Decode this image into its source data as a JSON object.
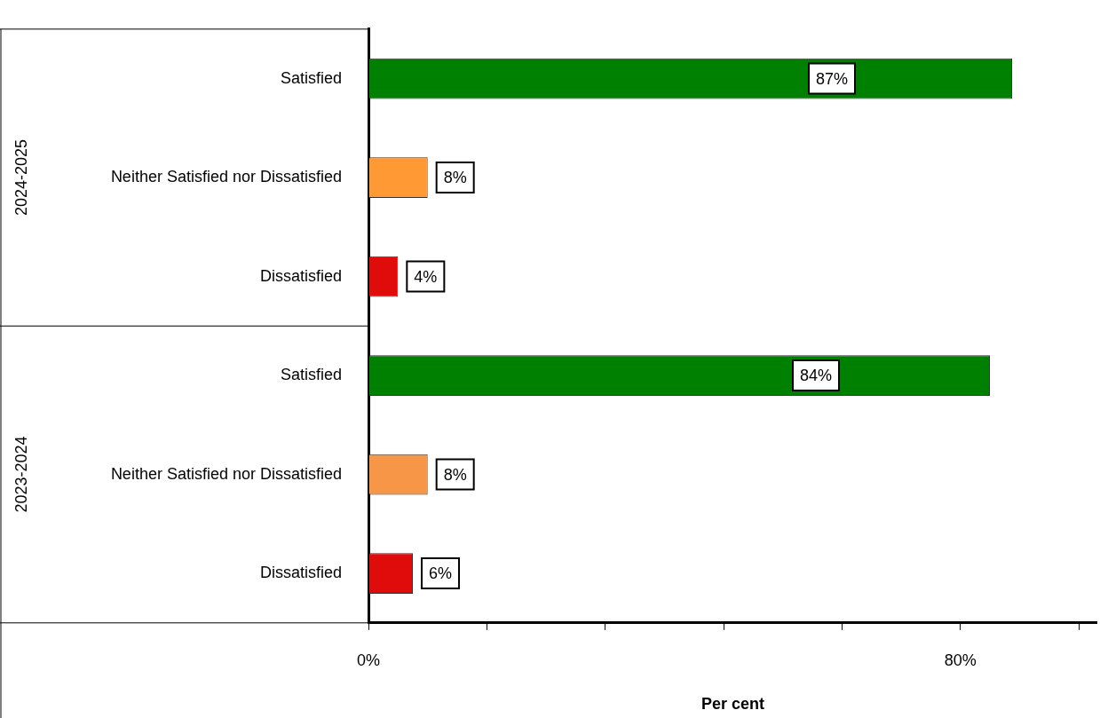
{
  "chart_data": {
    "type": "bar",
    "orientation": "horizontal",
    "xlabel": "Per cent",
    "categories": [
      "Satisfied",
      "Neither Satisfied nor Dissatisfied",
      "Dissatisfied",
      "Satisfied",
      "Neither Satisfied nor Dissatisfied",
      "Dissatisfied"
    ],
    "values": [
      87,
      8,
      4,
      84,
      8,
      6
    ],
    "colors": [
      "#008000",
      "#ff9933",
      "#e00b0b",
      "#008000",
      "#f79646",
      "#e00b0b"
    ],
    "value_labels": [
      "87%",
      "8%",
      "4%",
      "84%",
      "8%",
      "6%"
    ],
    "annotations": [
      "2024-2025",
      "2023-2024"
    ],
    "xlim": [
      0,
      98.5
    ],
    "xticks": [
      {
        "value": 0,
        "label": "0%"
      },
      {
        "value": 16,
        "label": null
      },
      {
        "value": 32,
        "label": null
      },
      {
        "value": 48,
        "label": null
      },
      {
        "value": 64,
        "label": null
      },
      {
        "value": 80,
        "label": "80%"
      },
      {
        "value": 96,
        "label": null
      }
    ],
    "grid": false,
    "legend": false
  }
}
